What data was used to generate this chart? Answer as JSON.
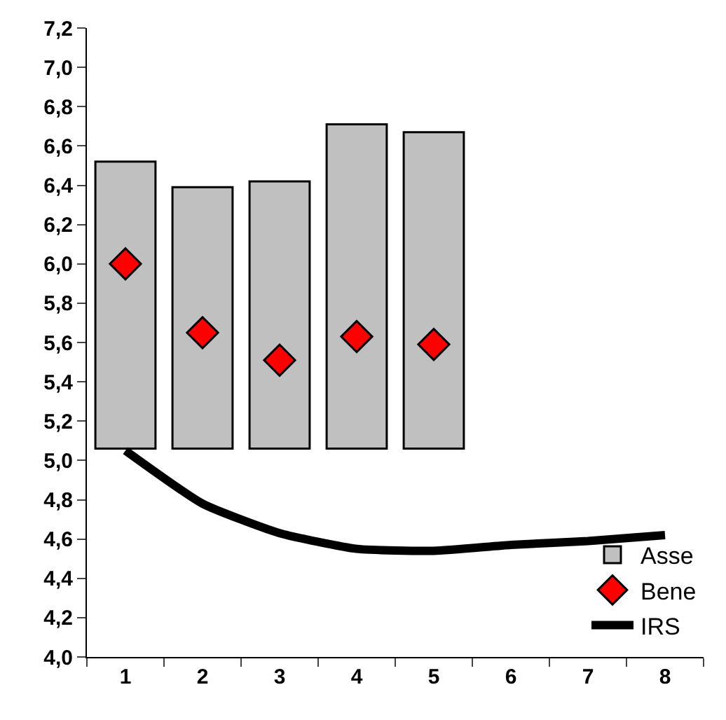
{
  "chart_data": {
    "type": "bar",
    "categories": [
      "1",
      "2",
      "3",
      "4",
      "5",
      "6",
      "7",
      "8"
    ],
    "series": [
      {
        "name": "Asse",
        "color": "#c0c0c0",
        "values": [
          1.46,
          1.33,
          1.36,
          1.65,
          1.61,
          null,
          null,
          null
        ],
        "base": [
          5.06,
          5.06,
          5.06,
          5.06,
          5.06,
          null,
          null,
          null
        ]
      },
      {
        "name": "Bene",
        "type": "scatter",
        "color": "#ff0000",
        "marker": "diamond",
        "values": [
          6.0,
          5.65,
          5.51,
          5.63,
          5.59,
          null,
          null,
          null
        ]
      },
      {
        "name": "IRS",
        "type": "line",
        "color": "#000000",
        "marker": "none",
        "line_style": "solid",
        "values": [
          5.05,
          4.78,
          4.63,
          4.55,
          4.54,
          4.57,
          4.59,
          4.62
        ]
      }
    ],
    "ylim": [
      4.0,
      7.2
    ],
    "yticks": [
      {
        "value": 4.0,
        "label": "4,0"
      },
      {
        "value": 4.2,
        "label": "4,2"
      },
      {
        "value": 4.4,
        "label": "4,4"
      },
      {
        "value": 4.6,
        "label": "4,6"
      },
      {
        "value": 4.8,
        "label": "4,8"
      },
      {
        "value": 5.0,
        "label": "5,0"
      },
      {
        "value": 5.2,
        "label": "5,2"
      },
      {
        "value": 5.4,
        "label": "5,4"
      },
      {
        "value": 5.6,
        "label": "5,6"
      },
      {
        "value": 5.8,
        "label": "5,8"
      },
      {
        "value": 6.0,
        "label": "6,0"
      },
      {
        "value": 6.2,
        "label": "6,2"
      },
      {
        "value": 6.4,
        "label": "6,4"
      },
      {
        "value": 6.6,
        "label": "6,6"
      },
      {
        "value": 6.8,
        "label": "6,8"
      },
      {
        "value": 7.0,
        "label": "7,0"
      },
      {
        "value": 7.2,
        "label": "7,2"
      }
    ],
    "legend": "bottom right"
  }
}
